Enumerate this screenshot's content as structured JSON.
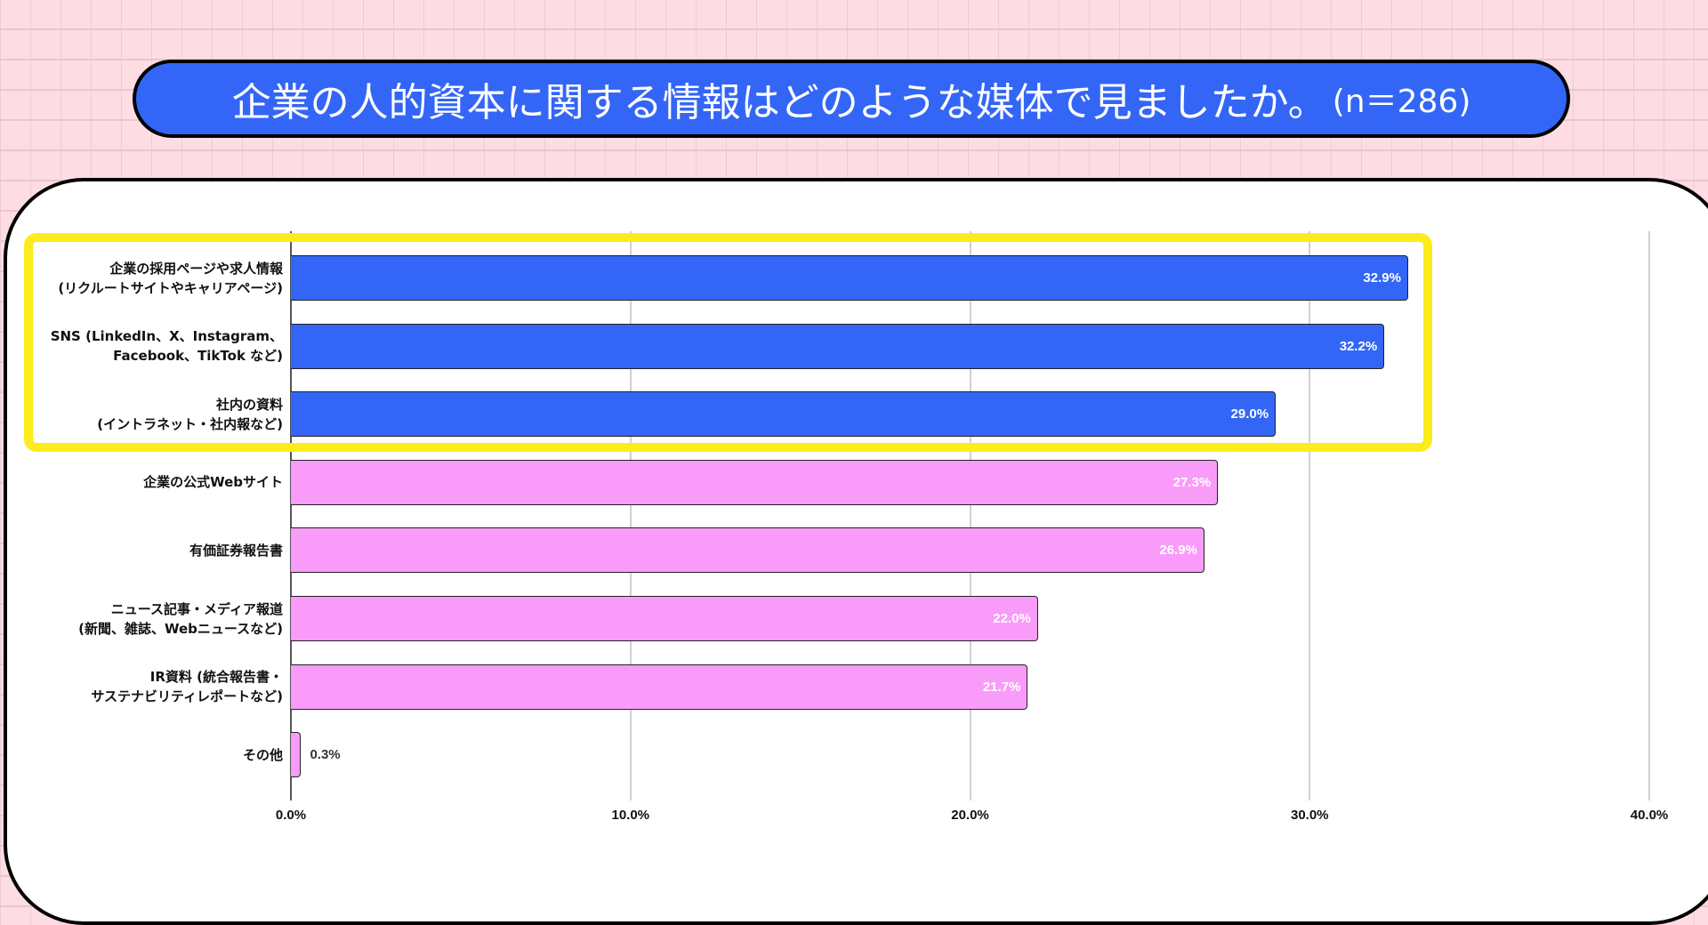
{
  "title": {
    "text": "企業の人的資本に関する情報はどのような媒体で見ましたか。",
    "n": "(n＝286)"
  },
  "colors": {
    "highlight_bar": "#3366f6",
    "normal_bar": "#f99cf9",
    "highlight_box": "#fcec1c"
  },
  "chart_data": {
    "type": "bar",
    "orientation": "horizontal",
    "title": "企業の人的資本に関する情報はどのような媒体で見ましたか。(n＝286)",
    "categories": [
      [
        "企業の採用ページや求人情報",
        "(リクルートサイトやキャリアページ)"
      ],
      [
        "SNS (LinkedIn、X、Instagram、",
        "Facebook、TikTok など)"
      ],
      [
        "社内の資料",
        "(イントラネット・社内報など)"
      ],
      [
        "企業の公式Webサイト"
      ],
      [
        "有価証券報告書"
      ],
      [
        "ニュース記事・メディア報道",
        "(新聞、雑誌、Webニュースなど)"
      ],
      [
        "IR資料 (統合報告書・",
        "サステナビリティレポートなど)"
      ],
      [
        "その他"
      ]
    ],
    "values": [
      32.9,
      32.2,
      29.0,
      27.3,
      26.9,
      22.0,
      21.7,
      0.3
    ],
    "value_labels": [
      "32.9%",
      "32.2%",
      "29.0%",
      "27.3%",
      "26.9%",
      "22.0%",
      "21.7%",
      "0.3%"
    ],
    "highlighted": [
      true,
      true,
      true,
      false,
      false,
      false,
      false,
      false
    ],
    "xlim": [
      0,
      40
    ],
    "xticks": [
      0,
      10,
      20,
      30,
      40
    ],
    "xtick_labels": [
      "0.0%",
      "10.0%",
      "20.0%",
      "30.0%",
      "40.0%"
    ],
    "grid": true,
    "xlabel": "",
    "ylabel": ""
  }
}
